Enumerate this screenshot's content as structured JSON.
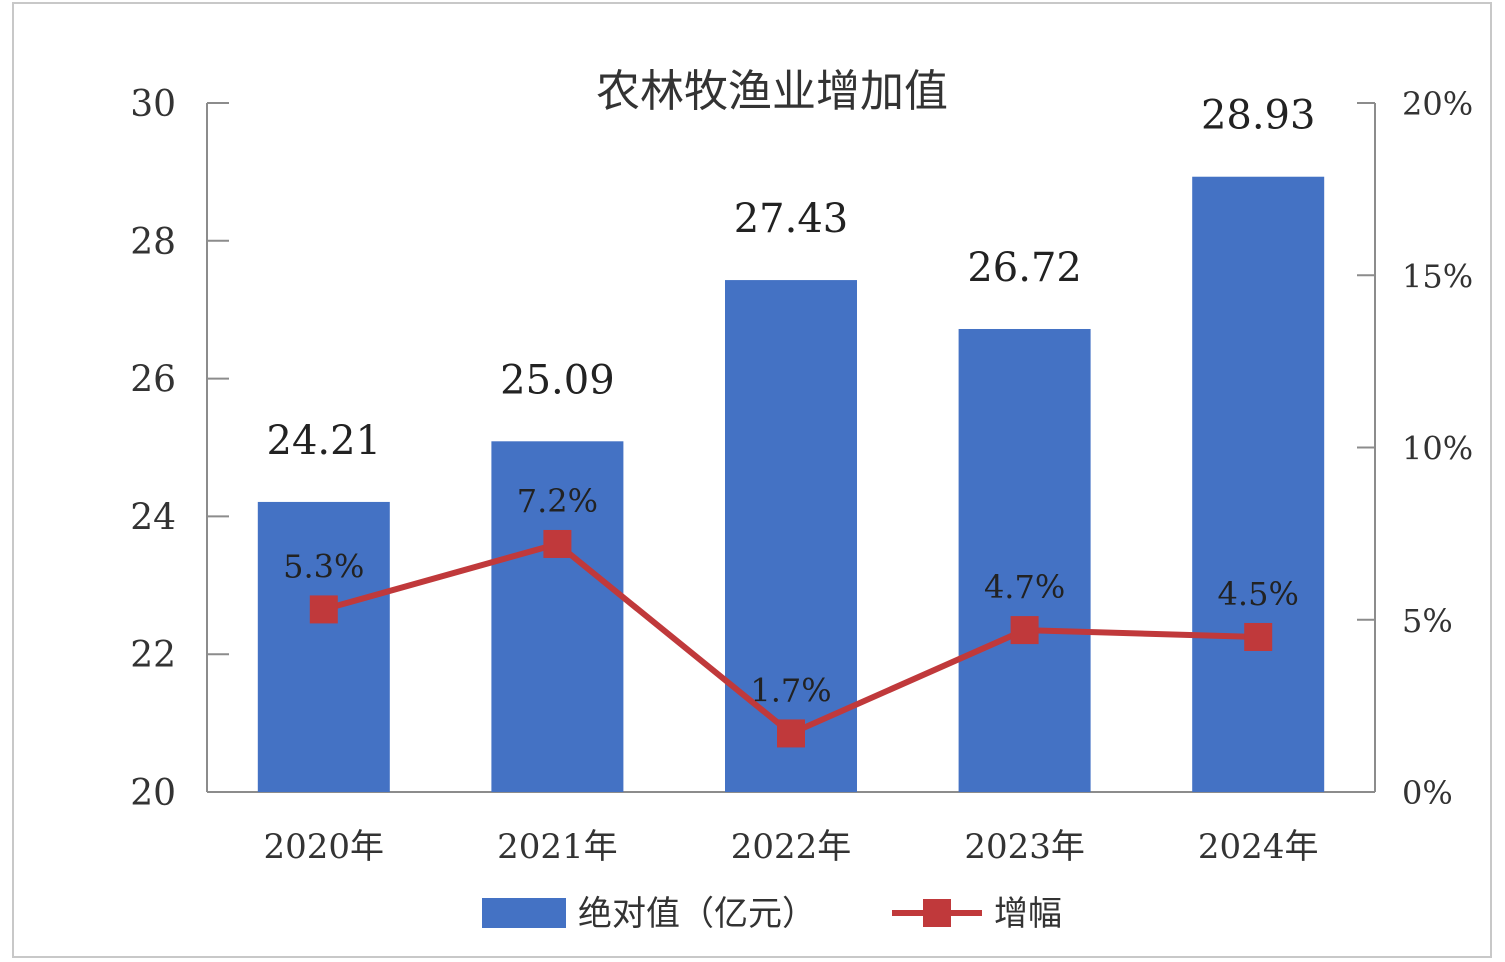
{
  "chart_data": {
    "type": "bar",
    "title": "农林牧渔业增加值",
    "categories": [
      "2020年",
      "2021年",
      "2022年",
      "2023年",
      "2024年"
    ],
    "series": [
      {
        "name": "绝对值（亿元）",
        "type": "bar",
        "axis": "left",
        "color": "#4472c4",
        "values": [
          24.21,
          25.09,
          27.43,
          26.72,
          28.93
        ],
        "labels": [
          "24.21",
          "25.09",
          "27.43",
          "26.72",
          "28.93"
        ]
      },
      {
        "name": "增幅",
        "type": "line",
        "axis": "right",
        "color": "#c0393b",
        "marker": "square",
        "values": [
          5.3,
          7.2,
          1.7,
          4.7,
          4.5
        ],
        "labels": [
          "5.3%",
          "7.2%",
          "1.7%",
          "4.7%",
          "4.5%"
        ]
      }
    ],
    "y_left": {
      "min": 20,
      "max": 30,
      "ticks": [
        "20",
        "22",
        "24",
        "26",
        "28",
        "30"
      ],
      "tick_values": [
        20,
        22,
        24,
        26,
        28,
        30
      ]
    },
    "y_right": {
      "min": 0,
      "max": 20,
      "ticks": [
        "0%",
        "5%",
        "10%",
        "15%",
        "20%"
      ],
      "tick_values": [
        0,
        5,
        10,
        15,
        20
      ]
    },
    "grid": false,
    "legend": {
      "position": "bottom"
    }
  }
}
